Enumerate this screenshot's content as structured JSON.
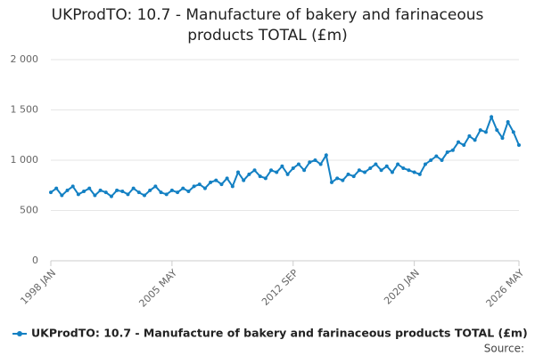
{
  "chart_data": {
    "type": "line",
    "title": "UKProdTO: 10.7 - Manufacture of bakery and farinaceous products TOTAL (£m)",
    "categories": [
      "1998 JAN",
      null,
      null,
      null,
      null,
      null,
      null,
      null,
      null,
      null,
      null,
      null,
      null,
      null,
      null,
      null,
      null,
      null,
      null,
      null,
      null,
      null,
      "2005 MAY",
      null,
      null,
      null,
      null,
      null,
      null,
      null,
      null,
      null,
      null,
      null,
      null,
      null,
      null,
      null,
      null,
      null,
      null,
      null,
      null,
      null,
      "2012 SEP",
      null,
      null,
      null,
      null,
      null,
      null,
      null,
      null,
      null,
      null,
      null,
      null,
      null,
      null,
      null,
      null,
      null,
      null,
      null,
      null,
      null,
      "2020 JAN",
      null,
      null,
      null,
      null,
      null,
      null,
      null,
      null,
      null,
      null,
      null,
      null,
      null,
      null,
      null,
      null,
      null,
      null,
      "2026 MAY"
    ],
    "series": [
      {
        "name": "UKProdTO: 10.7 - Manufacture of bakery and farinaceous products TOTAL (£m)",
        "color": "#1380c3",
        "values": [
          680,
          720,
          650,
          700,
          740,
          660,
          690,
          720,
          650,
          700,
          680,
          640,
          700,
          690,
          660,
          720,
          680,
          650,
          700,
          740,
          680,
          660,
          700,
          680,
          720,
          690,
          740,
          760,
          720,
          780,
          800,
          760,
          820,
          740,
          880,
          800,
          860,
          900,
          840,
          820,
          900,
          880,
          940,
          860,
          920,
          960,
          900,
          980,
          1000,
          960,
          1050,
          780,
          820,
          800,
          860,
          840,
          900,
          880,
          920,
          960,
          900,
          940,
          880,
          960,
          920,
          900,
          880,
          860,
          960,
          1000,
          1040,
          1000,
          1080,
          1100,
          1180,
          1150,
          1240,
          1200,
          1300,
          1280,
          1430,
          1300,
          1220,
          1380,
          1280,
          1150
        ]
      }
    ],
    "ylim": [
      0,
      2000
    ],
    "yticks": [
      0,
      500,
      {
        "value": 1000,
        "label": "1 000"
      },
      {
        "value": 1500,
        "label": "1 500"
      },
      {
        "value": 2000,
        "label": "2 000"
      }
    ],
    "grid": true,
    "source": "Source:"
  }
}
